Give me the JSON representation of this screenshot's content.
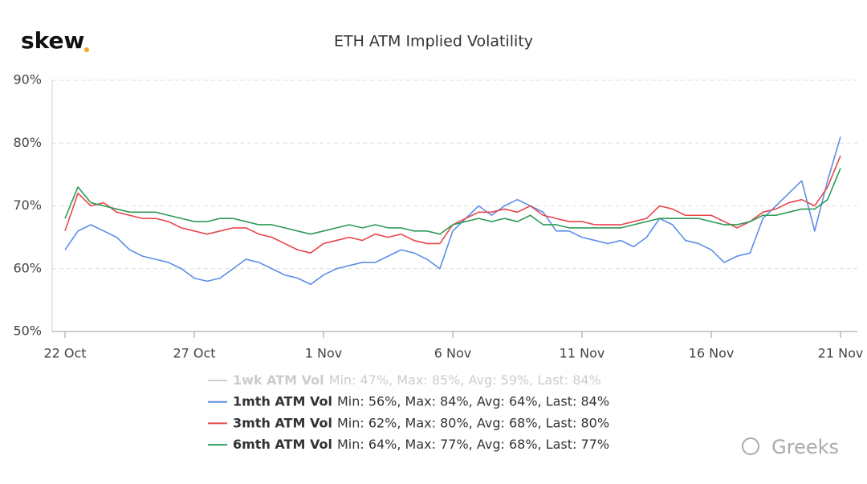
{
  "chart_data": {
    "type": "line",
    "title": "ETH ATM Implied Volatility",
    "logo": "skew",
    "watermark": "Greeks",
    "categories": [
      "22 Oct",
      null,
      null,
      null,
      null,
      null,
      null,
      null,
      null,
      null,
      "27 Oct",
      null,
      null,
      null,
      null,
      null,
      null,
      null,
      null,
      null,
      "1 Nov",
      null,
      null,
      null,
      null,
      null,
      null,
      null,
      null,
      null,
      "6 Nov",
      null,
      null,
      null,
      null,
      null,
      null,
      null,
      null,
      null,
      "11 Nov",
      null,
      null,
      null,
      null,
      null,
      null,
      null,
      null,
      null,
      "16 Nov",
      null,
      null,
      null,
      null,
      null,
      null,
      null,
      null,
      null,
      "21 Nov"
    ],
    "ylim": [
      50,
      90
    ],
    "yticks": [
      {
        "value": 50,
        "label": "50%"
      },
      {
        "value": 60,
        "label": "60%"
      },
      {
        "value": 70,
        "label": "70%"
      },
      {
        "value": 80,
        "label": "80%"
      },
      {
        "value": 90,
        "label": "90%"
      }
    ],
    "grid": true,
    "legend_hidden": [
      {
        "name": "1wk ATM Vol",
        "color": "#cccccc",
        "stats": "Min: 47%, Max: 85%, Avg: 59%, Last: 84%"
      }
    ],
    "series": [
      {
        "name": "1mth ATM Vol",
        "color": "#5b8ee6",
        "stats": "Min: 56%, Max: 84%, Avg: 64%, Last: 84%",
        "values": [
          63,
          66,
          67,
          66,
          65,
          63,
          62,
          61.5,
          61,
          60,
          58.5,
          58,
          58.5,
          60,
          61.5,
          61,
          60,
          59,
          58.5,
          57.5,
          59,
          60,
          60.5,
          61,
          61,
          62,
          63,
          62.5,
          61.5,
          60,
          66,
          68,
          70,
          68.5,
          70,
          71,
          70,
          69,
          66,
          66,
          65,
          64.5,
          64,
          64.5,
          63.5,
          65,
          68,
          67,
          64.5,
          64,
          63,
          61,
          62,
          62.5,
          68,
          70,
          72,
          74,
          66,
          74,
          81
        ]
      },
      {
        "name": "3mth ATM Vol",
        "color": "#e8474c",
        "stats": "Min: 62%, Max: 80%, Avg: 68%, Last: 80%",
        "values": [
          66,
          72,
          70,
          70.5,
          69,
          68.5,
          68,
          68,
          67.5,
          66.5,
          66,
          65.5,
          66,
          66.5,
          66.5,
          65.5,
          65,
          64,
          63,
          62.5,
          64,
          64.5,
          65,
          64.5,
          65.5,
          65,
          65.5,
          64.5,
          64,
          64,
          67,
          68,
          69,
          69,
          69.5,
          69,
          70,
          68.5,
          68,
          67.5,
          67.5,
          67,
          67,
          67,
          67.5,
          68,
          70,
          69.5,
          68.5,
          68.5,
          68.5,
          67.5,
          66.5,
          67.5,
          69,
          69.5,
          70.5,
          71,
          70,
          73,
          78
        ]
      },
      {
        "name": "6mth ATM Vol",
        "color": "#2e9a57",
        "stats": "Min: 64%, Max: 77%, Avg: 68%, Last: 77%",
        "values": [
          68,
          73,
          70.5,
          70,
          69.5,
          69,
          69,
          69,
          68.5,
          68,
          67.5,
          67.5,
          68,
          68,
          67.5,
          67,
          67,
          66.5,
          66,
          65.5,
          66,
          66.5,
          67,
          66.5,
          67,
          66.5,
          66.5,
          66,
          66,
          65.5,
          67,
          67.5,
          68,
          67.5,
          68,
          67.5,
          68.5,
          67,
          67,
          66.5,
          66.5,
          66.5,
          66.5,
          66.5,
          67,
          67.5,
          68,
          68,
          68,
          68,
          67.5,
          67,
          67,
          67.5,
          68.5,
          68.5,
          69,
          69.5,
          69.5,
          71,
          76
        ]
      }
    ]
  }
}
